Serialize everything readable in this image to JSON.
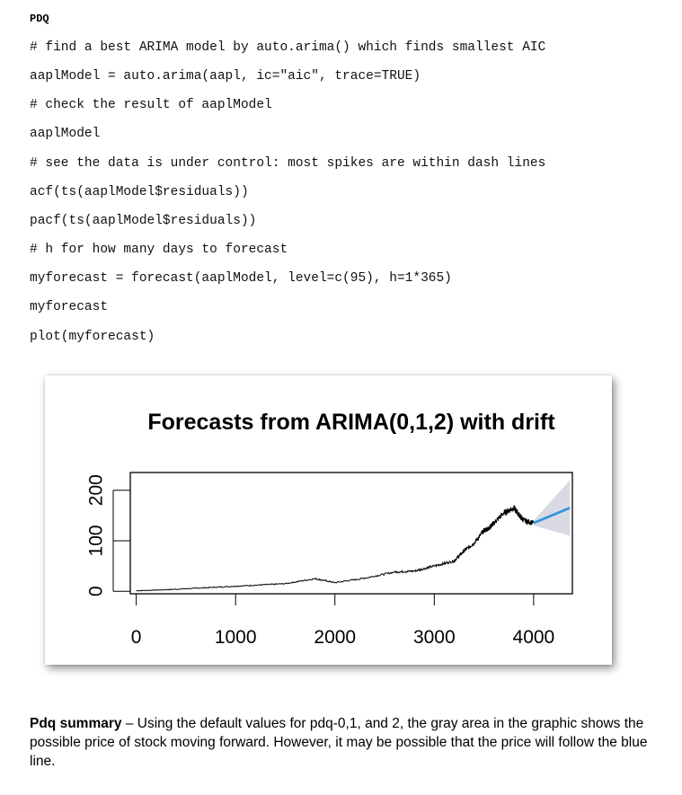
{
  "heading": "PDQ",
  "code_lines": [
    "# find a best ARIMA model by auto.arima() which finds smallest AIC",
    "aaplModel = auto.arima(aapl, ic=\"aic\", trace=TRUE)",
    "# check the result of aaplModel",
    "aaplModel",
    "# see the data is under control: most spikes are within dash lines",
    "acf(ts(aaplModel$residuals))",
    "pacf(ts(aaplModel$residuals))",
    "# h for how many days to forecast",
    "myforecast = forecast(aaplModel, level=c(95), h=1*365)",
    "myforecast",
    "plot(myforecast)"
  ],
  "chart_data": {
    "type": "line",
    "title": "Forecasts from ARIMA(0,1,2) with drift",
    "xlabel": "",
    "ylabel": "",
    "x_ticks": [
      0,
      1000,
      2000,
      3000,
      4000
    ],
    "y_ticks": [
      0,
      100,
      200
    ],
    "xlim": [
      -60,
      4390
    ],
    "ylim": [
      -5,
      235
    ],
    "series": [
      {
        "color": "#000000",
        "x": [
          0,
          300,
          600,
          900,
          1200,
          1500,
          1800,
          2000,
          2300,
          2600,
          2800,
          3000,
          3200,
          3300,
          3400,
          3500,
          3550,
          3600,
          3700,
          3800,
          3850,
          3900,
          4000
        ],
        "y": [
          1,
          3,
          6,
          9,
          12,
          15,
          25,
          17,
          26,
          38,
          40,
          50,
          60,
          80,
          95,
          120,
          125,
          135,
          155,
          165,
          152,
          140,
          135
        ]
      },
      {
        "name": "forecast",
        "color": "#2e95e0",
        "x": [
          4000,
          4365
        ],
        "y": [
          135,
          165
        ]
      }
    ],
    "interval": {
      "level": "95",
      "color": "#d9d9e2",
      "x": [
        4000,
        4365
      ],
      "upper": [
        140,
        220
      ],
      "lower": [
        130,
        110
      ]
    }
  },
  "summary": {
    "bold": "Pdq summary",
    "text": " – Using the default values for pdq-0,1, and 2, the gray area in the graphic shows the possible price of stock moving forward. However, it may be possible that the price will follow the blue line."
  }
}
